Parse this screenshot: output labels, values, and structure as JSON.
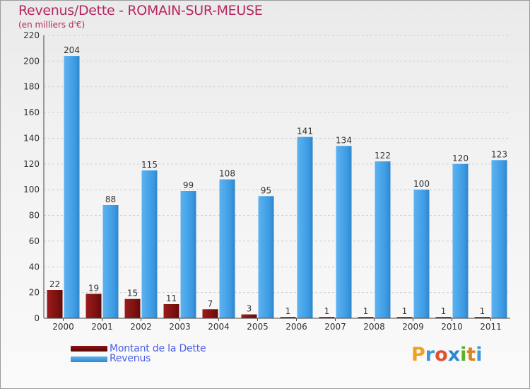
{
  "header": {
    "title": "Revenus/Dette - ROMAIN-SUR-MEUSE",
    "subtitle": "(en milliers d'€)"
  },
  "legend": {
    "debt_label": "Montant de la Dette",
    "revenue_label": "Revenus"
  },
  "logo": {
    "letters": [
      "P",
      "r",
      "o",
      "x",
      "i",
      "t",
      "i"
    ],
    "colors": [
      "#f0a020",
      "#3a9ad8",
      "#e05030",
      "#2a8ad0",
      "#60b030",
      "#e08020",
      "#3a9ad8"
    ]
  },
  "colors": {
    "debt": "#7a1010",
    "revenue": "#3d9be3",
    "title": "#b5285f"
  },
  "chart_data": {
    "type": "bar",
    "categories": [
      "2000",
      "2001",
      "2002",
      "2003",
      "2004",
      "2005",
      "2006",
      "2007",
      "2008",
      "2009",
      "2010",
      "2011"
    ],
    "series": [
      {
        "name": "Montant de la Dette",
        "values": [
          22,
          19,
          15,
          11,
          7,
          3,
          1,
          1,
          1,
          1,
          1,
          1
        ]
      },
      {
        "name": "Revenus",
        "values": [
          204,
          88,
          115,
          99,
          108,
          95,
          141,
          134,
          122,
          100,
          120,
          123
        ]
      }
    ],
    "ylim": [
      0,
      220
    ],
    "yticks": [
      0,
      20,
      40,
      60,
      80,
      100,
      120,
      140,
      160,
      180,
      200,
      220
    ],
    "grid": true,
    "legend_position": "bottom-left"
  }
}
